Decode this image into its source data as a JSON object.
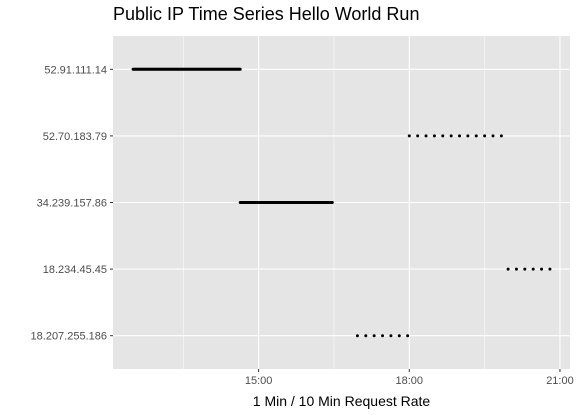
{
  "chart_data": {
    "type": "scatter",
    "title": "Public IP Time Series Hello World Run",
    "xlabel": "1 Min / 10 Min Request Rate",
    "ylabel": "",
    "x_ticks": [
      "15:00",
      "18:00",
      "21:00"
    ],
    "x_tick_hours": [
      15,
      18,
      21
    ],
    "xlim_hours": [
      12.1,
      21.2
    ],
    "categories": [
      "52.91.111.14",
      "52.70.183.79",
      "34.239.157.86",
      "18.234.45.45",
      "18.207.255.186"
    ],
    "grid": true,
    "legend": "none",
    "background_color": "#e5e5e5",
    "grid_color": "#ffffff",
    "point_color": "#000000",
    "series": [
      {
        "category": "52.91.111.14",
        "rate": "1 min",
        "start_hour": 12.5,
        "end_hour": 14.633,
        "interval_minutes": 1
      },
      {
        "category": "52.70.183.79",
        "rate": "10 min",
        "start_hour": 18.0,
        "end_hour": 19.833,
        "interval_minutes": 10
      },
      {
        "category": "34.239.157.86",
        "rate": "1 min",
        "start_hour": 14.633,
        "end_hour": 16.467,
        "interval_minutes": 1
      },
      {
        "category": "18.234.45.45",
        "rate": "10 min",
        "start_hour": 19.967,
        "end_hour": 20.8,
        "interval_minutes": 10
      },
      {
        "category": "18.207.255.186",
        "rate": "10 min",
        "start_hour": 16.967,
        "end_hour": 17.967,
        "interval_minutes": 10
      }
    ]
  }
}
